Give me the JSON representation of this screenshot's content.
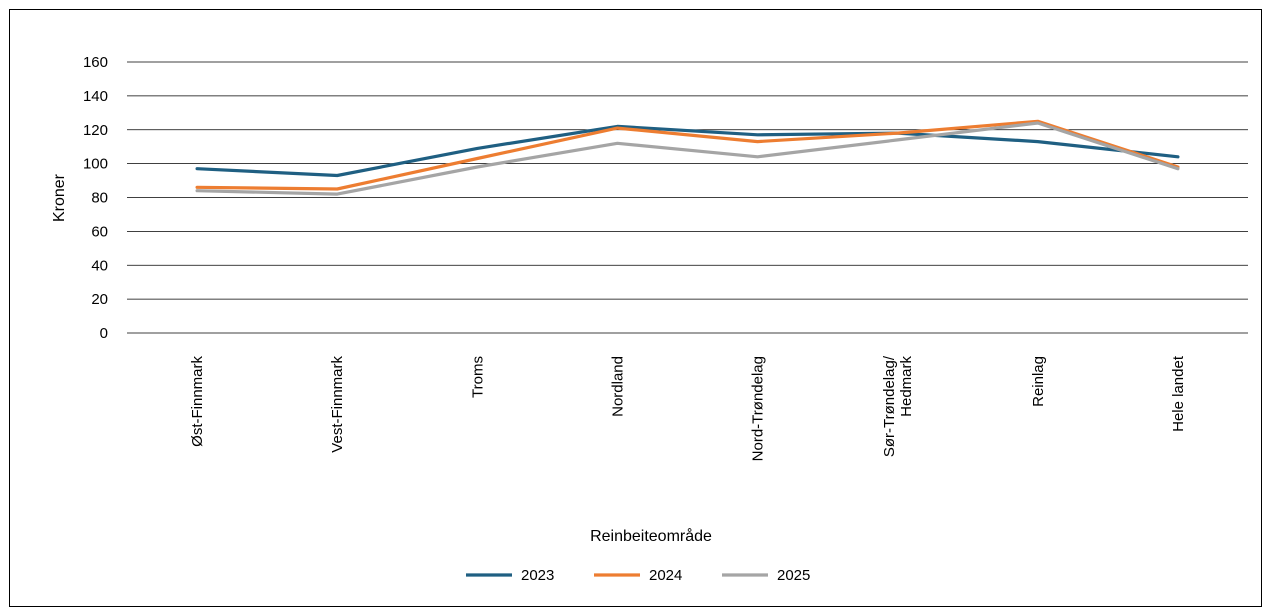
{
  "chart_data": {
    "type": "line",
    "title": "",
    "xlabel": "Reinbeiteområde",
    "ylabel": "Kroner",
    "ylim": [
      0,
      160
    ],
    "yticks": [
      0,
      20,
      40,
      60,
      80,
      100,
      120,
      140,
      160
    ],
    "grid": "horizontal",
    "legend_position": "bottom",
    "categories": [
      [
        "Øst-Finnmark"
      ],
      [
        "Vest-Finnmark"
      ],
      [
        "Troms"
      ],
      [
        "Nordland"
      ],
      [
        "Nord-Trøndelag"
      ],
      [
        "Sør-Trøndelag/",
        "Hedmark"
      ],
      [
        "Reinlag"
      ],
      [
        "Hele landet"
      ]
    ],
    "series": [
      {
        "name": "2023",
        "color": "#1F5F82",
        "values": [
          97,
          93,
          109,
          122,
          117,
          118,
          113,
          104
        ]
      },
      {
        "name": "2024",
        "color": "#ED7D31",
        "values": [
          86,
          85,
          103,
          121,
          113,
          118,
          125,
          98
        ]
      },
      {
        "name": "2025",
        "color": "#A5A5A5",
        "values": [
          84,
          82,
          98,
          112,
          104,
          114,
          124,
          97
        ]
      }
    ]
  }
}
